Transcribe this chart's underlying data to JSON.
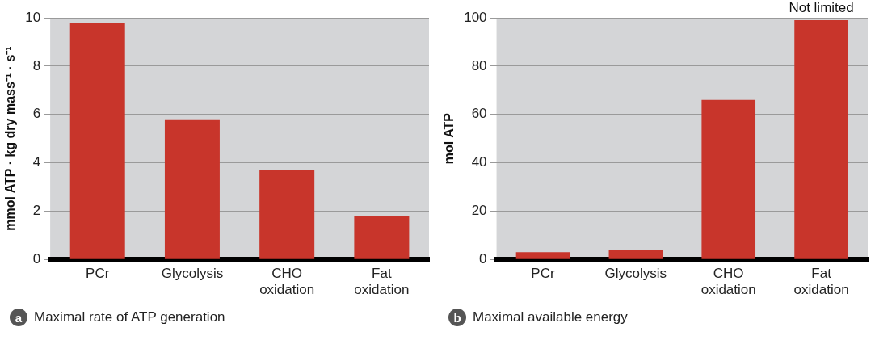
{
  "chart_data": [
    {
      "type": "bar",
      "title": "Maximal rate of ATP generation",
      "ylabel": "mmol ATP · kg dry mass⁻¹ · s⁻¹",
      "categories": [
        "PCr",
        "Glycolysis",
        "CHO oxidation",
        "Fat oxidation"
      ],
      "values": [
        9.8,
        5.8,
        3.7,
        1.8
      ],
      "color": "#c8352b",
      "ylim": [
        0,
        10
      ],
      "yticks": [
        0,
        2,
        4,
        6,
        8,
        10
      ],
      "grid": "y",
      "annotations": [
        "a"
      ]
    },
    {
      "type": "bar",
      "title": "Maximal available energy",
      "ylabel": "mol ATP",
      "categories": [
        "PCr",
        "Glycolysis",
        "CHO oxidation",
        "Fat oxidation"
      ],
      "values": [
        3,
        4,
        66,
        99
      ],
      "color": "#c8352b",
      "ylim": [
        0,
        100
      ],
      "yticks": [
        0,
        20,
        40,
        60,
        80,
        100
      ],
      "grid": "y",
      "annotations": [
        "b",
        {
          "text": "Not limited",
          "x": "Fat oxidation",
          "y": 99
        }
      ]
    }
  ]
}
